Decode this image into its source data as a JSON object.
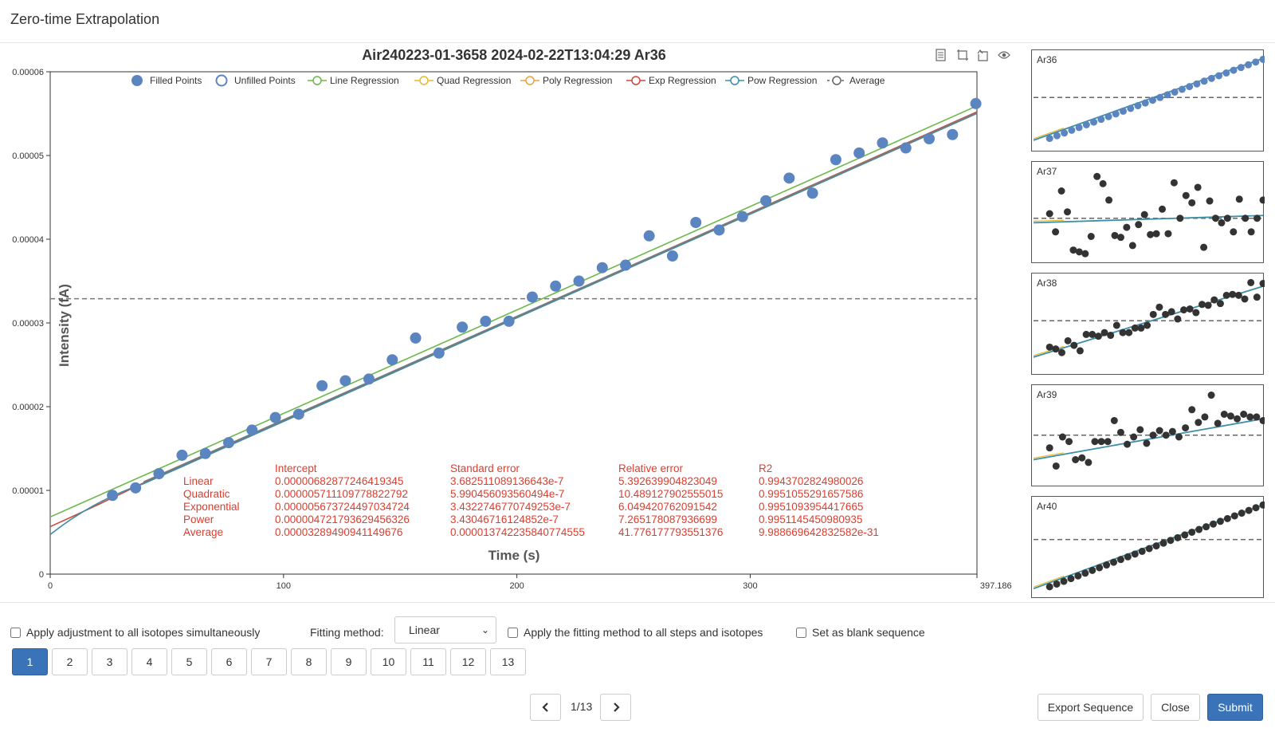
{
  "dialog": {
    "title": "Zero-time Extrapolation"
  },
  "toolbar_icons": [
    "data-view-icon",
    "select-area-icon",
    "restore-icon",
    "eye-icon"
  ],
  "chart_data": {
    "type": "scatter",
    "title": "Air240223-01-3658  2024-02-22T13:04:29  Ar36",
    "xlabel": "Time (s)",
    "ylabel": "Intensity (fA)",
    "xlim": [
      0,
      397.1862125
    ],
    "ylim": [
      0,
      6e-05
    ],
    "x_tick_labels": [
      "0",
      "100",
      "200",
      "300",
      "397.1862125"
    ],
    "x_ticks": [
      0,
      100,
      200,
      300,
      397.1862125
    ],
    "y_tick_labels": [
      "0",
      "0.00001",
      "0.00002",
      "0.00003",
      "0.00004",
      "0.00005",
      "0.00006"
    ],
    "y_ticks": [
      0,
      1e-05,
      2e-05,
      3e-05,
      4e-05,
      5e-05,
      6e-05
    ],
    "legend_position": "top",
    "legend": [
      {
        "name": "Filled Points",
        "marker": "filled-circle",
        "color": "#5b85c1"
      },
      {
        "name": "Unfilled Points",
        "marker": "empty-circle",
        "color": "#5b85c1"
      },
      {
        "name": "Line Regression",
        "marker": "line",
        "color": "#6cb84a"
      },
      {
        "name": "Quad Regression",
        "marker": "line",
        "color": "#e8b92e"
      },
      {
        "name": "Poly Regression",
        "marker": "line",
        "color": "#f0a040"
      },
      {
        "name": "Exp Regression",
        "marker": "line",
        "color": "#d0463a"
      },
      {
        "name": "Pow Regression",
        "marker": "line",
        "color": "#3b8fa8"
      },
      {
        "name": "Average",
        "marker": "dashed",
        "color": "#666666"
      }
    ],
    "points": {
      "x": [
        26.7,
        36.6,
        46.6,
        56.5,
        66.5,
        76.5,
        86.5,
        96.5,
        106.5,
        116.5,
        126.5,
        136.6,
        146.6,
        156.6,
        166.6,
        176.6,
        186.6,
        196.6,
        206.6,
        216.6,
        226.6,
        236.6,
        246.6,
        256.7,
        266.7,
        276.7,
        286.7,
        296.7,
        306.7,
        316.7,
        326.7,
        336.7,
        346.7,
        356.7,
        366.7,
        376.7,
        386.7,
        396.7
      ],
      "y": [
        9.4e-06,
        1.03e-05,
        1.2e-05,
        1.42e-05,
        1.44e-05,
        1.57e-05,
        1.72e-05,
        1.87e-05,
        1.91e-05,
        2.25e-05,
        2.31e-05,
        2.33e-05,
        2.56e-05,
        2.82e-05,
        2.64e-05,
        2.95e-05,
        3.02e-05,
        3.02e-05,
        3.31e-05,
        3.44e-05,
        3.5e-05,
        3.66e-05,
        3.69e-05,
        4.04e-05,
        3.8e-05,
        4.2e-05,
        4.11e-05,
        4.27e-05,
        4.46e-05,
        4.73e-05,
        4.55e-05,
        4.95e-05,
        5.03e-05,
        5.15e-05,
        5.09e-05,
        5.2e-05,
        5.25e-05,
        5.62e-05
      ]
    },
    "regressions": {
      "linear": {
        "intercept": 6.82877246419345e-06,
        "slope": 1.236e-07
      },
      "exponential": {
        "intercept": 5.673724497034724e-06
      },
      "power": {
        "intercept": 4.721793629456326e-06
      },
      "average": {
        "value": 3.289490941149676e-05
      }
    },
    "stats_table": {
      "headers": [
        "",
        "Intercept",
        "Standard error",
        "Relative error",
        "R2"
      ],
      "rows": [
        [
          "Linear",
          "0.00000682877246419345",
          "3.682511089136643e-7",
          "5.392639904823049",
          "0.9943702824980026"
        ],
        [
          "Quadratic",
          "0.000005711109778822792",
          "5.990456093560494e-7",
          "10.489127902555015",
          "0.9951055291657586"
        ],
        [
          "Exponential",
          "0.000005673724497034724",
          "3.4322746770749253e-7",
          "6.049420762091542",
          "0.9951093954417665"
        ],
        [
          "Power",
          "0.000004721793629456326",
          "3.43046716124852e-7",
          "7.265178087936699",
          "0.9951145450980935"
        ],
        [
          "Average",
          "0.00003289490941149676",
          "0.000013742235840774555",
          "41.776177793551376",
          "9.988669642832582e-31"
        ]
      ]
    }
  },
  "side_charts": [
    {
      "label": "Ar36",
      "color": "#5b85c1",
      "points": [
        0.1,
        0.13,
        0.16,
        0.19,
        0.22,
        0.25,
        0.28,
        0.31,
        0.34,
        0.37,
        0.4,
        0.43,
        0.46,
        0.49,
        0.52,
        0.55,
        0.58,
        0.61,
        0.64,
        0.67,
        0.7,
        0.73,
        0.76,
        0.79,
        0.82,
        0.85,
        0.88,
        0.91,
        0.94,
        0.97
      ],
      "fit": [
        0.08,
        0.98
      ],
      "avg": 0.55
    },
    {
      "label": "Ar37",
      "color": "#333333",
      "points": [
        0.5,
        0.3,
        0.75,
        0.52,
        0.1,
        0.08,
        0.06,
        0.25,
        0.91,
        0.83,
        0.65,
        0.26,
        0.24,
        0.35,
        0.15,
        0.38,
        0.49,
        0.27,
        0.28,
        0.55,
        0.28,
        0.84,
        0.45,
        0.7,
        0.62,
        0.79,
        0.13,
        0.64,
        0.45,
        0.4,
        0.45,
        0.3,
        0.66,
        0.45,
        0.3,
        0.45,
        0.65
      ],
      "fit": [
        0.4,
        0.48
      ],
      "avg": 0.45
    },
    {
      "label": "Ar38",
      "color": "#333333",
      "points": [
        0.26,
        0.24,
        0.2,
        0.33,
        0.28,
        0.22,
        0.4,
        0.4,
        0.38,
        0.42,
        0.39,
        0.5,
        0.42,
        0.42,
        0.47,
        0.47,
        0.5,
        0.62,
        0.7,
        0.62,
        0.65,
        0.57,
        0.67,
        0.68,
        0.64,
        0.73,
        0.72,
        0.78,
        0.74,
        0.83,
        0.84,
        0.83,
        0.79,
        0.97,
        0.81,
        0.96
      ],
      "fit": [
        0.15,
        0.93
      ],
      "avg": 0.55
    },
    {
      "label": "Ar39",
      "color": "#333333",
      "points": [
        0.38,
        0.18,
        0.5,
        0.45,
        0.25,
        0.27,
        0.22,
        0.45,
        0.45,
        0.45,
        0.68,
        0.55,
        0.42,
        0.5,
        0.58,
        0.43,
        0.52,
        0.57,
        0.52,
        0.56,
        0.5,
        0.6,
        0.8,
        0.66,
        0.72,
        0.96,
        0.65,
        0.75,
        0.73,
        0.7,
        0.75,
        0.72,
        0.72,
        0.68
      ],
      "fit": [
        0.25,
        0.7
      ],
      "avg": 0.52
    },
    {
      "label": "Ar40",
      "color": "#333333",
      "points": [
        0.08,
        0.11,
        0.14,
        0.17,
        0.2,
        0.23,
        0.26,
        0.29,
        0.32,
        0.35,
        0.38,
        0.41,
        0.44,
        0.47,
        0.5,
        0.53,
        0.56,
        0.59,
        0.62,
        0.65,
        0.68,
        0.71,
        0.74,
        0.77,
        0.8,
        0.83,
        0.86,
        0.89,
        0.92,
        0.95,
        0.98
      ],
      "fit": [
        0.06,
        0.98
      ],
      "avg": 0.6
    }
  ],
  "controls": {
    "apply_all_isotopes": "Apply adjustment to all isotopes simultaneously",
    "fitting_method_label": "Fitting method:",
    "fitting_method_value": "Linear",
    "apply_fitting_all": "Apply the fitting method to all steps and isotopes",
    "set_blank": "Set as blank sequence"
  },
  "pagination": {
    "pages": [
      "1",
      "2",
      "3",
      "4",
      "5",
      "6",
      "7",
      "8",
      "9",
      "10",
      "11",
      "12",
      "13"
    ],
    "active": "1",
    "indicator": "1/13"
  },
  "buttons": {
    "export": "Export Sequence",
    "close": "Close",
    "submit": "Submit"
  }
}
